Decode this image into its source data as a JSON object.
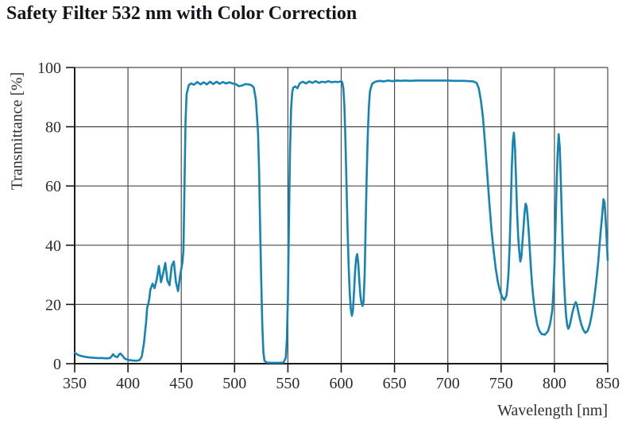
{
  "chart_data": {
    "type": "line",
    "title": "Safety Filter 532 nm with Color Correction",
    "xlabel": "Wavelength [nm]",
    "ylabel": "Transmittance [%]",
    "xlim": [
      350,
      850
    ],
    "ylim": [
      0,
      100
    ],
    "xticks": [
      350,
      400,
      450,
      500,
      550,
      600,
      650,
      700,
      750,
      800,
      850
    ],
    "yticks": [
      0,
      20,
      40,
      60,
      80,
      100
    ],
    "grid": true,
    "legend": "none",
    "line_color": "#1583B3",
    "axis_color": "#1a1a1a",
    "grid_color": "#4a4a4a",
    "series": [
      {
        "name": "Transmittance",
        "points": [
          [
            350,
            3.7
          ],
          [
            353,
            3.0
          ],
          [
            356,
            2.6
          ],
          [
            360,
            2.3
          ],
          [
            364,
            2.1
          ],
          [
            368,
            2.0
          ],
          [
            372,
            1.9
          ],
          [
            376,
            1.9
          ],
          [
            380,
            1.8
          ],
          [
            383,
            1.9
          ],
          [
            385,
            2.6
          ],
          [
            386,
            3.2
          ],
          [
            388,
            2.4
          ],
          [
            390,
            2.2
          ],
          [
            392,
            3.2
          ],
          [
            393,
            3.4
          ],
          [
            395,
            2.6
          ],
          [
            397,
            1.7
          ],
          [
            400,
            1.3
          ],
          [
            404,
            1.1
          ],
          [
            408,
            1.0
          ],
          [
            411,
            1.2
          ],
          [
            413,
            2.5
          ],
          [
            415,
            7
          ],
          [
            417,
            14
          ],
          [
            418,
            19
          ],
          [
            419,
            20
          ],
          [
            420,
            22
          ],
          [
            421,
            25
          ],
          [
            423,
            27
          ],
          [
            425,
            25.5
          ],
          [
            427,
            28.5
          ],
          [
            429,
            33
          ],
          [
            431,
            27.5
          ],
          [
            433,
            30.5
          ],
          [
            435,
            34
          ],
          [
            437,
            28
          ],
          [
            439,
            26.5
          ],
          [
            441,
            33
          ],
          [
            443,
            34.5
          ],
          [
            445,
            27.5
          ],
          [
            447,
            24.5
          ],
          [
            449,
            30
          ],
          [
            450,
            32
          ],
          [
            451,
            34
          ],
          [
            452,
            38
          ],
          [
            453,
            60
          ],
          [
            454,
            82
          ],
          [
            455,
            91
          ],
          [
            457,
            94
          ],
          [
            459,
            94.6
          ],
          [
            462,
            94.2
          ],
          [
            465,
            95.1
          ],
          [
            468,
            94.3
          ],
          [
            471,
            95.0
          ],
          [
            474,
            94.3
          ],
          [
            477,
            95.2
          ],
          [
            480,
            94.4
          ],
          [
            483,
            95.2
          ],
          [
            486,
            94.5
          ],
          [
            489,
            95.1
          ],
          [
            492,
            94.6
          ],
          [
            495,
            95.0
          ],
          [
            498,
            94.6
          ],
          [
            501,
            94.4
          ],
          [
            504,
            93.7
          ],
          [
            507,
            93.9
          ],
          [
            510,
            94.4
          ],
          [
            513,
            94.3
          ],
          [
            516,
            94.0
          ],
          [
            518,
            93.2
          ],
          [
            520,
            89
          ],
          [
            522,
            78
          ],
          [
            523,
            65
          ],
          [
            524,
            45
          ],
          [
            525,
            28
          ],
          [
            526,
            13
          ],
          [
            527,
            4
          ],
          [
            528,
            1.0
          ],
          [
            530,
            0.4
          ],
          [
            534,
            0.3
          ],
          [
            538,
            0.3
          ],
          [
            542,
            0.3
          ],
          [
            546,
            0.4
          ],
          [
            548,
            2
          ],
          [
            549,
            8
          ],
          [
            550,
            22
          ],
          [
            551,
            48
          ],
          [
            552,
            72
          ],
          [
            553,
            86
          ],
          [
            554,
            91.5
          ],
          [
            555,
            93.2
          ],
          [
            557,
            93.6
          ],
          [
            559,
            93.0
          ],
          [
            561,
            94.6
          ],
          [
            564,
            95.2
          ],
          [
            567,
            94.6
          ],
          [
            570,
            95.3
          ],
          [
            573,
            94.8
          ],
          [
            576,
            95.4
          ],
          [
            579,
            94.8
          ],
          [
            582,
            95.2
          ],
          [
            585,
            95.0
          ],
          [
            588,
            95.4
          ],
          [
            591,
            95.0
          ],
          [
            594,
            95.2
          ],
          [
            597,
            95.1
          ],
          [
            600,
            95.3
          ],
          [
            601,
            95.0
          ],
          [
            602,
            93
          ],
          [
            603,
            87
          ],
          [
            604,
            75
          ],
          [
            605,
            60
          ],
          [
            606,
            45
          ],
          [
            607,
            33
          ],
          [
            608,
            24
          ],
          [
            609,
            18.5
          ],
          [
            610,
            16.2
          ],
          [
            611,
            18
          ],
          [
            612,
            24
          ],
          [
            613,
            31
          ],
          [
            614,
            35.5
          ],
          [
            615,
            37
          ],
          [
            616,
            34
          ],
          [
            617,
            28
          ],
          [
            618,
            23
          ],
          [
            619,
            20.5
          ],
          [
            620,
            19.5
          ],
          [
            621,
            21
          ],
          [
            622,
            30
          ],
          [
            623,
            48
          ],
          [
            624,
            65
          ],
          [
            625,
            78
          ],
          [
            626,
            87
          ],
          [
            627,
            92
          ],
          [
            629,
            94.5
          ],
          [
            632,
            95.2
          ],
          [
            636,
            95.5
          ],
          [
            640,
            95.3
          ],
          [
            644,
            95.6
          ],
          [
            648,
            95.4
          ],
          [
            652,
            95.6
          ],
          [
            656,
            95.5
          ],
          [
            660,
            95.6
          ],
          [
            665,
            95.5
          ],
          [
            670,
            95.6
          ],
          [
            675,
            95.6
          ],
          [
            680,
            95.6
          ],
          [
            685,
            95.6
          ],
          [
            690,
            95.6
          ],
          [
            695,
            95.6
          ],
          [
            700,
            95.6
          ],
          [
            705,
            95.5
          ],
          [
            710,
            95.5
          ],
          [
            715,
            95.5
          ],
          [
            720,
            95.4
          ],
          [
            724,
            95.3
          ],
          [
            727,
            94.8
          ],
          [
            729,
            93
          ],
          [
            731,
            89
          ],
          [
            733,
            83
          ],
          [
            735,
            74
          ],
          [
            737,
            64
          ],
          [
            739,
            54
          ],
          [
            741,
            45
          ],
          [
            743,
            38
          ],
          [
            745,
            32
          ],
          [
            747,
            27.5
          ],
          [
            749,
            24.5
          ],
          [
            751,
            22.5
          ],
          [
            753,
            21.5
          ],
          [
            755,
            23
          ],
          [
            756,
            26
          ],
          [
            757,
            31
          ],
          [
            758,
            40
          ],
          [
            759,
            52
          ],
          [
            760,
            66
          ],
          [
            761,
            75
          ],
          [
            762,
            78
          ],
          [
            763,
            73
          ],
          [
            764,
            62
          ],
          [
            765,
            51
          ],
          [
            766,
            43
          ],
          [
            767,
            38
          ],
          [
            768,
            34.5
          ],
          [
            769,
            36
          ],
          [
            770,
            41
          ],
          [
            771,
            46
          ],
          [
            772,
            51
          ],
          [
            773,
            54
          ],
          [
            774,
            53
          ],
          [
            775,
            49
          ],
          [
            776,
            44
          ],
          [
            777,
            38
          ],
          [
            778,
            32
          ],
          [
            779,
            27
          ],
          [
            780,
            23
          ],
          [
            782,
            17
          ],
          [
            784,
            13
          ],
          [
            786,
            11
          ],
          [
            788,
            10
          ],
          [
            791,
            9.8
          ],
          [
            794,
            11
          ],
          [
            796,
            13.5
          ],
          [
            798,
            18
          ],
          [
            799,
            24
          ],
          [
            800,
            33
          ],
          [
            801,
            46
          ],
          [
            802,
            60
          ],
          [
            803,
            71
          ],
          [
            804,
            77.5
          ],
          [
            805,
            73
          ],
          [
            806,
            62
          ],
          [
            807,
            49
          ],
          [
            808,
            37
          ],
          [
            809,
            28
          ],
          [
            810,
            21
          ],
          [
            811,
            16
          ],
          [
            812,
            13
          ],
          [
            813,
            11.8
          ],
          [
            814,
            12.5
          ],
          [
            815,
            14
          ],
          [
            817,
            17.5
          ],
          [
            819,
            20
          ],
          [
            820,
            20.8
          ],
          [
            821,
            20
          ],
          [
            823,
            16.5
          ],
          [
            825,
            13.5
          ],
          [
            827,
            11.5
          ],
          [
            829,
            10.4
          ],
          [
            831,
            11
          ],
          [
            833,
            13
          ],
          [
            835,
            16.5
          ],
          [
            837,
            21
          ],
          [
            839,
            27
          ],
          [
            841,
            34
          ],
          [
            843,
            43
          ],
          [
            845,
            51
          ],
          [
            846,
            55.5
          ],
          [
            847,
            54.5
          ],
          [
            848,
            49
          ],
          [
            849,
            42
          ],
          [
            850,
            35
          ]
        ]
      }
    ]
  }
}
